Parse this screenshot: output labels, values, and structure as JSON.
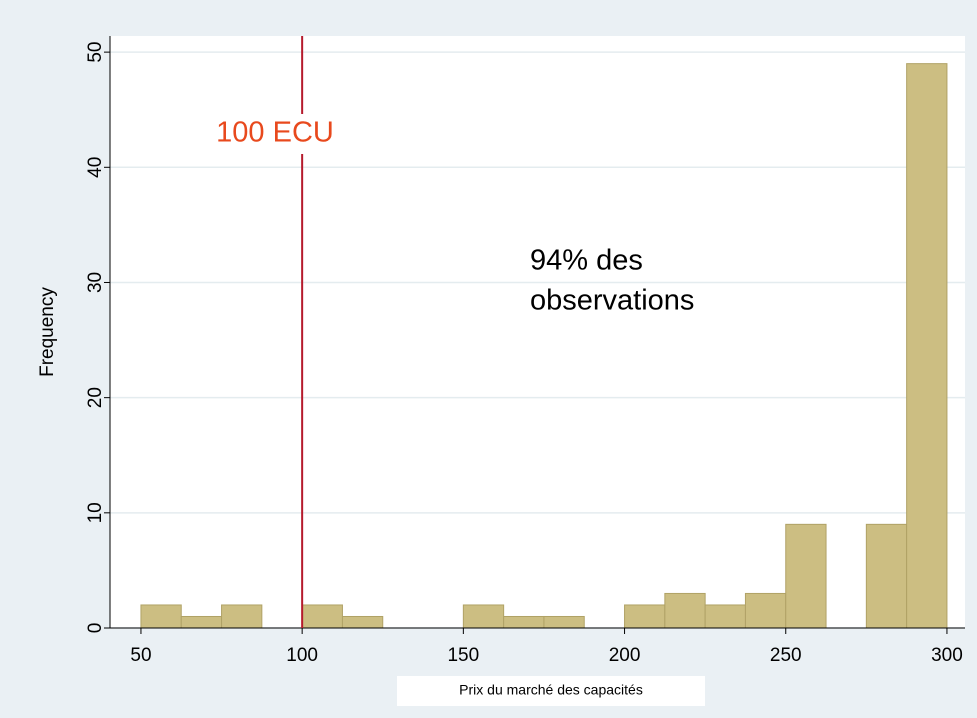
{
  "chart_data": {
    "type": "histogram",
    "x_label": "Prix du marché des capacités",
    "y_label": "Frequency",
    "bins": [
      50,
      62.5,
      75,
      87.5,
      100,
      112.5,
      125,
      137.5,
      150,
      162.5,
      175,
      187.5,
      200,
      212.5,
      225,
      237.5,
      250,
      262.5,
      275,
      287.5,
      300
    ],
    "values": [
      2,
      1,
      2,
      0,
      2,
      1,
      0,
      0,
      2,
      1,
      1,
      0,
      2,
      3,
      2,
      3,
      9,
      0,
      9,
      49
    ],
    "color": "#ccbe82",
    "xlim": [
      40.4,
      305.6
    ],
    "ylim": [
      0,
      51.4
    ],
    "xticks": [
      50,
      100,
      150,
      200,
      250,
      300
    ],
    "yticks": [
      0,
      10,
      20,
      30,
      40,
      50
    ],
    "grid": true,
    "xline": 100,
    "xline_color": "#b51a2c",
    "annotations": [
      {
        "lines": [
          "100 ECU"
        ],
        "color": "#e8491d"
      },
      {
        "lines": [
          "94% des",
          "observations"
        ],
        "color": "#000000"
      }
    ]
  }
}
